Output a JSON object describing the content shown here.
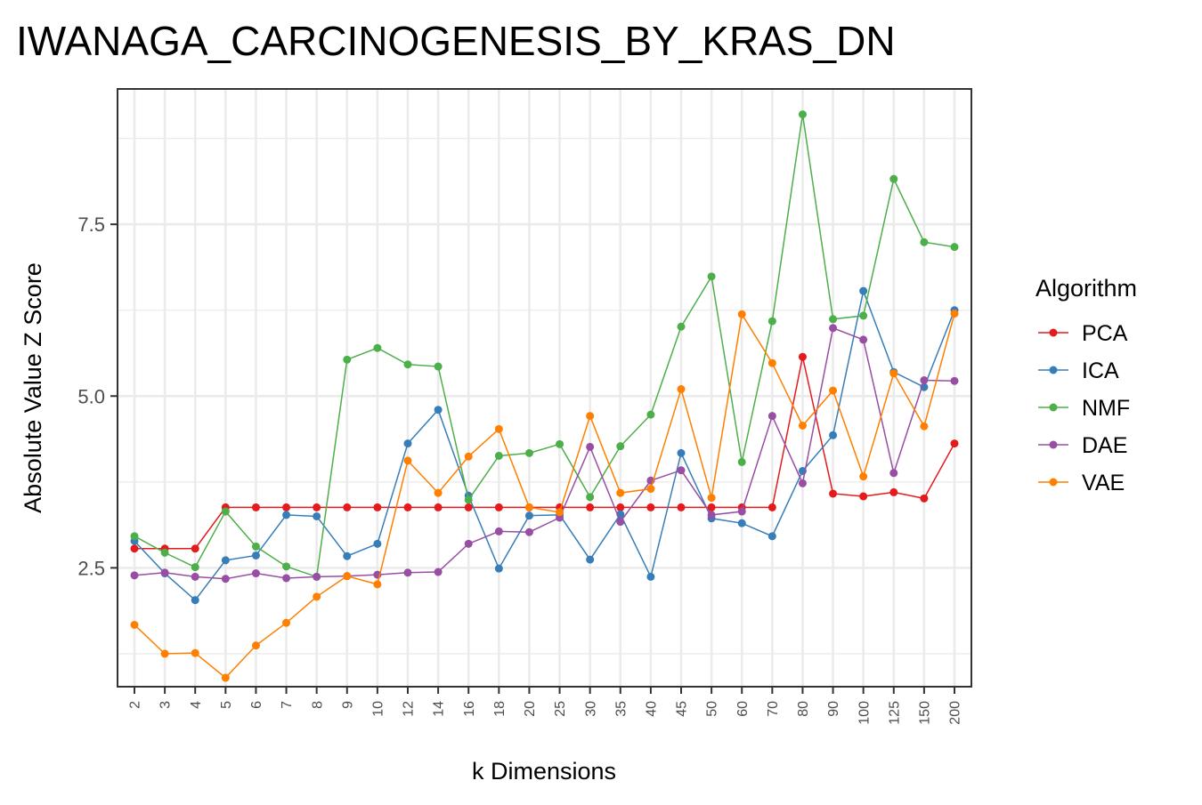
{
  "chart_data": {
    "type": "line",
    "title": "IWANAGA_CARCINOGENESIS_BY_KRAS_DN",
    "xlabel": "k Dimensions",
    "ylabel": "Absolute Value Z Score",
    "categories": [
      "2",
      "3",
      "4",
      "5",
      "6",
      "7",
      "8",
      "9",
      "10",
      "12",
      "14",
      "16",
      "18",
      "20",
      "25",
      "30",
      "35",
      "40",
      "45",
      "50",
      "60",
      "70",
      "80",
      "90",
      "100",
      "125",
      "150",
      "200"
    ],
    "ylim": [
      0.77,
      9.47
    ],
    "y_ticks": [
      "2.5",
      "5.0",
      "7.5"
    ],
    "grid": true,
    "legend": {
      "title": "Algorithm",
      "placement": "right"
    },
    "series": [
      {
        "name": "PCA",
        "color": "#E41A1C",
        "values": [
          2.78,
          2.78,
          2.78,
          3.38,
          3.38,
          3.38,
          3.38,
          3.38,
          3.38,
          3.38,
          3.38,
          3.38,
          3.38,
          3.38,
          3.38,
          3.38,
          3.38,
          3.38,
          3.38,
          3.38,
          3.38,
          3.38,
          5.57,
          3.58,
          3.54,
          3.6,
          3.51,
          4.31
        ]
      },
      {
        "name": "ICA",
        "color": "#377EB8",
        "values": [
          2.89,
          2.42,
          2.03,
          2.61,
          2.68,
          3.27,
          3.25,
          2.67,
          2.85,
          4.31,
          4.8,
          3.55,
          2.49,
          3.26,
          3.27,
          2.62,
          3.28,
          2.37,
          4.17,
          3.22,
          3.15,
          2.96,
          3.91,
          4.43,
          6.53,
          5.35,
          5.13,
          6.25
        ]
      },
      {
        "name": "NMF",
        "color": "#4DAF4A",
        "values": [
          2.96,
          2.72,
          2.51,
          3.32,
          2.81,
          2.52,
          2.37,
          5.53,
          5.7,
          5.46,
          5.43,
          3.49,
          4.13,
          4.17,
          4.3,
          3.53,
          4.27,
          4.73,
          6.01,
          6.74,
          4.04,
          6.09,
          9.1,
          6.12,
          6.17,
          8.16,
          7.24,
          7.17
        ]
      },
      {
        "name": "DAE",
        "color": "#984EA3",
        "values": [
          2.39,
          2.43,
          2.37,
          2.34,
          2.42,
          2.35,
          2.37,
          2.38,
          2.4,
          2.43,
          2.44,
          2.85,
          3.03,
          3.02,
          3.23,
          4.26,
          3.17,
          3.77,
          3.92,
          3.27,
          3.32,
          4.71,
          3.73,
          5.99,
          5.82,
          3.88,
          5.23,
          5.22
        ]
      },
      {
        "name": "VAE",
        "color": "#FF7F00",
        "values": [
          1.67,
          1.25,
          1.26,
          0.9,
          1.37,
          1.7,
          2.08,
          2.38,
          2.26,
          4.06,
          3.59,
          4.12,
          4.52,
          3.38,
          3.31,
          4.71,
          3.59,
          3.65,
          5.1,
          3.52,
          6.19,
          5.48,
          4.57,
          5.08,
          3.83,
          5.33,
          4.56,
          6.2
        ]
      }
    ]
  }
}
